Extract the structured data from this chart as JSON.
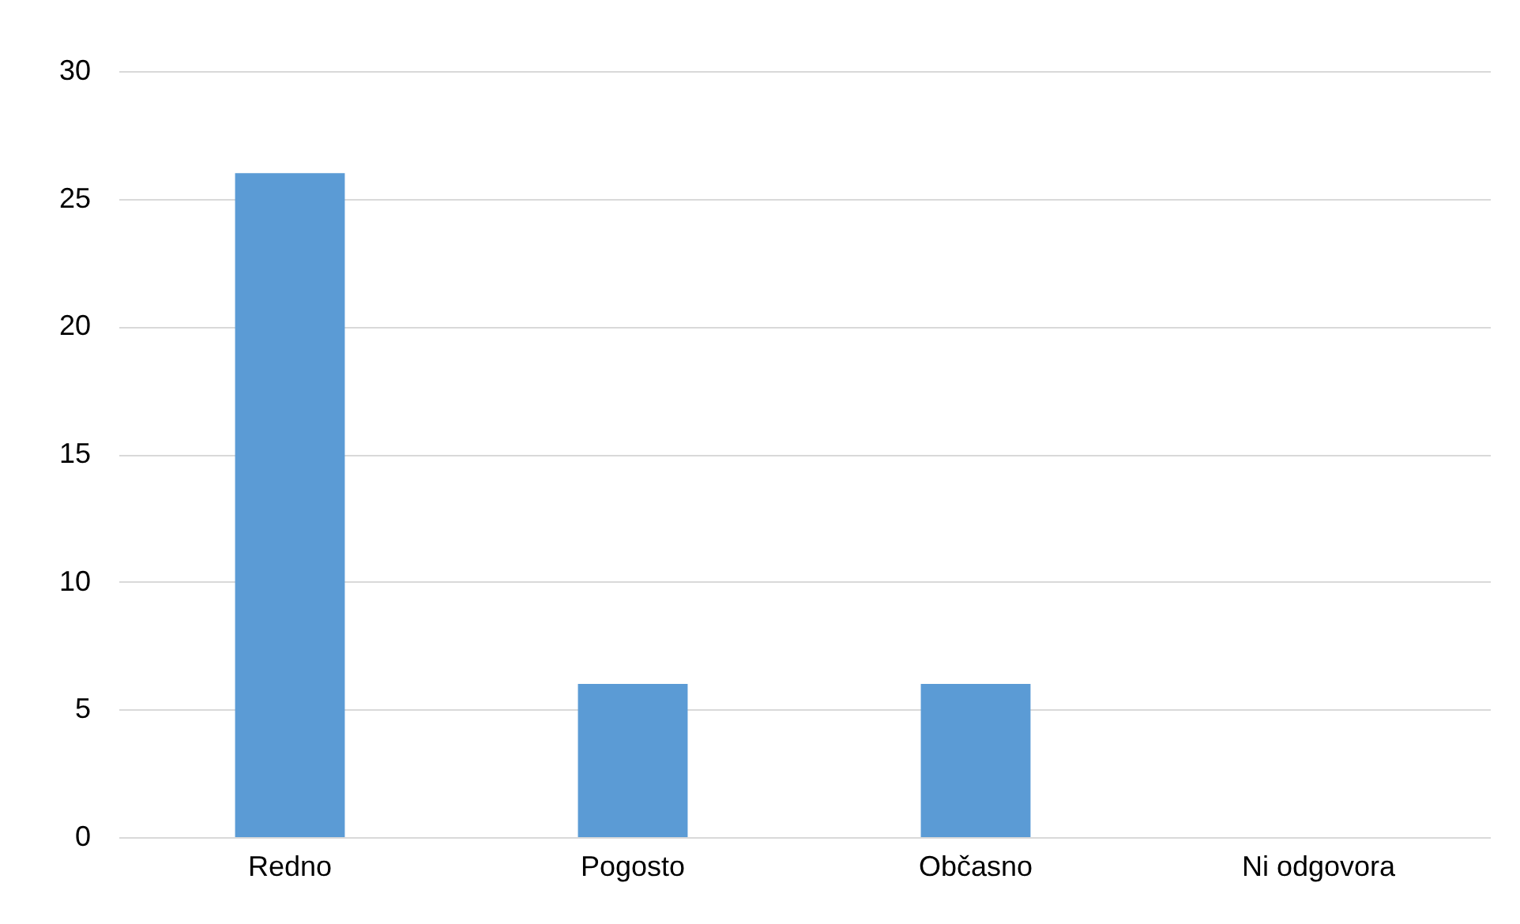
{
  "chart_data": {
    "type": "bar",
    "categories": [
      "Redno",
      "Pogosto",
      "Občasno",
      "Ni odgovora",
      null
    ],
    "values": [
      26,
      6,
      6,
      0,
      null
    ],
    "color": "#5b9bd5",
    "ylim": [
      0,
      30
    ],
    "yticks": [
      0,
      5,
      10,
      15,
      20,
      25,
      30
    ],
    "grid": "y"
  }
}
